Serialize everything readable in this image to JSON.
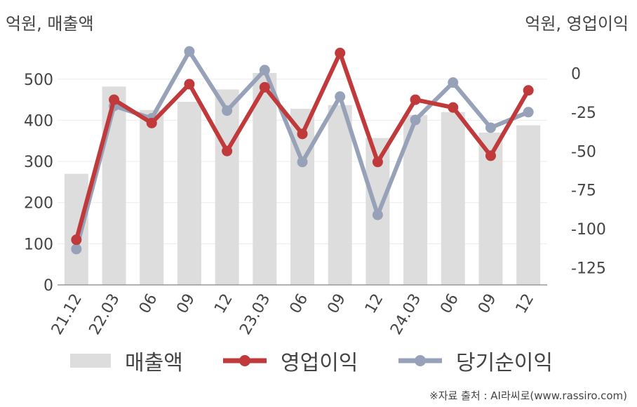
{
  "header": {
    "left_unit": "억원, 매출액",
    "right_unit": "억원, 영업이익"
  },
  "source": "※자료 출처 : AI라씨로(www.rassiro.com)",
  "colors": {
    "bar": "#dddddd",
    "operating_profit": "#c0393b",
    "net_income": "#97a2b8",
    "axis": "#999999",
    "grid": "#ececec",
    "text": "#444444"
  },
  "chart_data": {
    "type": "bar+line",
    "categories": [
      "21.12",
      "22.03",
      "06",
      "09",
      "12",
      "23.03",
      "06",
      "09",
      "12",
      "24.03",
      "06",
      "09",
      "12"
    ],
    "left_axis": {
      "label": "억원, 매출액",
      "ylim": [
        0,
        590
      ],
      "ticks": [
        0,
        100,
        200,
        300,
        400,
        500
      ]
    },
    "right_axis": {
      "label": "억원, 영업이익",
      "ylim": [
        -136,
        20
      ],
      "ticks": [
        0,
        -25,
        -50,
        -75,
        -100,
        -125
      ]
    },
    "series": [
      {
        "name": "매출액",
        "type": "bar",
        "axis": "left",
        "values": [
          270,
          482,
          425,
          445,
          475,
          515,
          428,
          437,
          357,
          413,
          420,
          370,
          388
        ]
      },
      {
        "name": "영업이익",
        "type": "line",
        "axis": "right",
        "values": [
          -107,
          -17,
          -32,
          -7,
          -50,
          -9,
          -39,
          13,
          -57,
          -17,
          -22,
          -53,
          -11
        ]
      },
      {
        "name": "당기순이익",
        "type": "line",
        "axis": "right",
        "values": [
          -113,
          -21,
          -29,
          14,
          -24,
          2,
          -57,
          -15,
          -91,
          -30,
          -6,
          -35,
          -25
        ]
      }
    ],
    "grid": true,
    "legend": "bottom"
  }
}
